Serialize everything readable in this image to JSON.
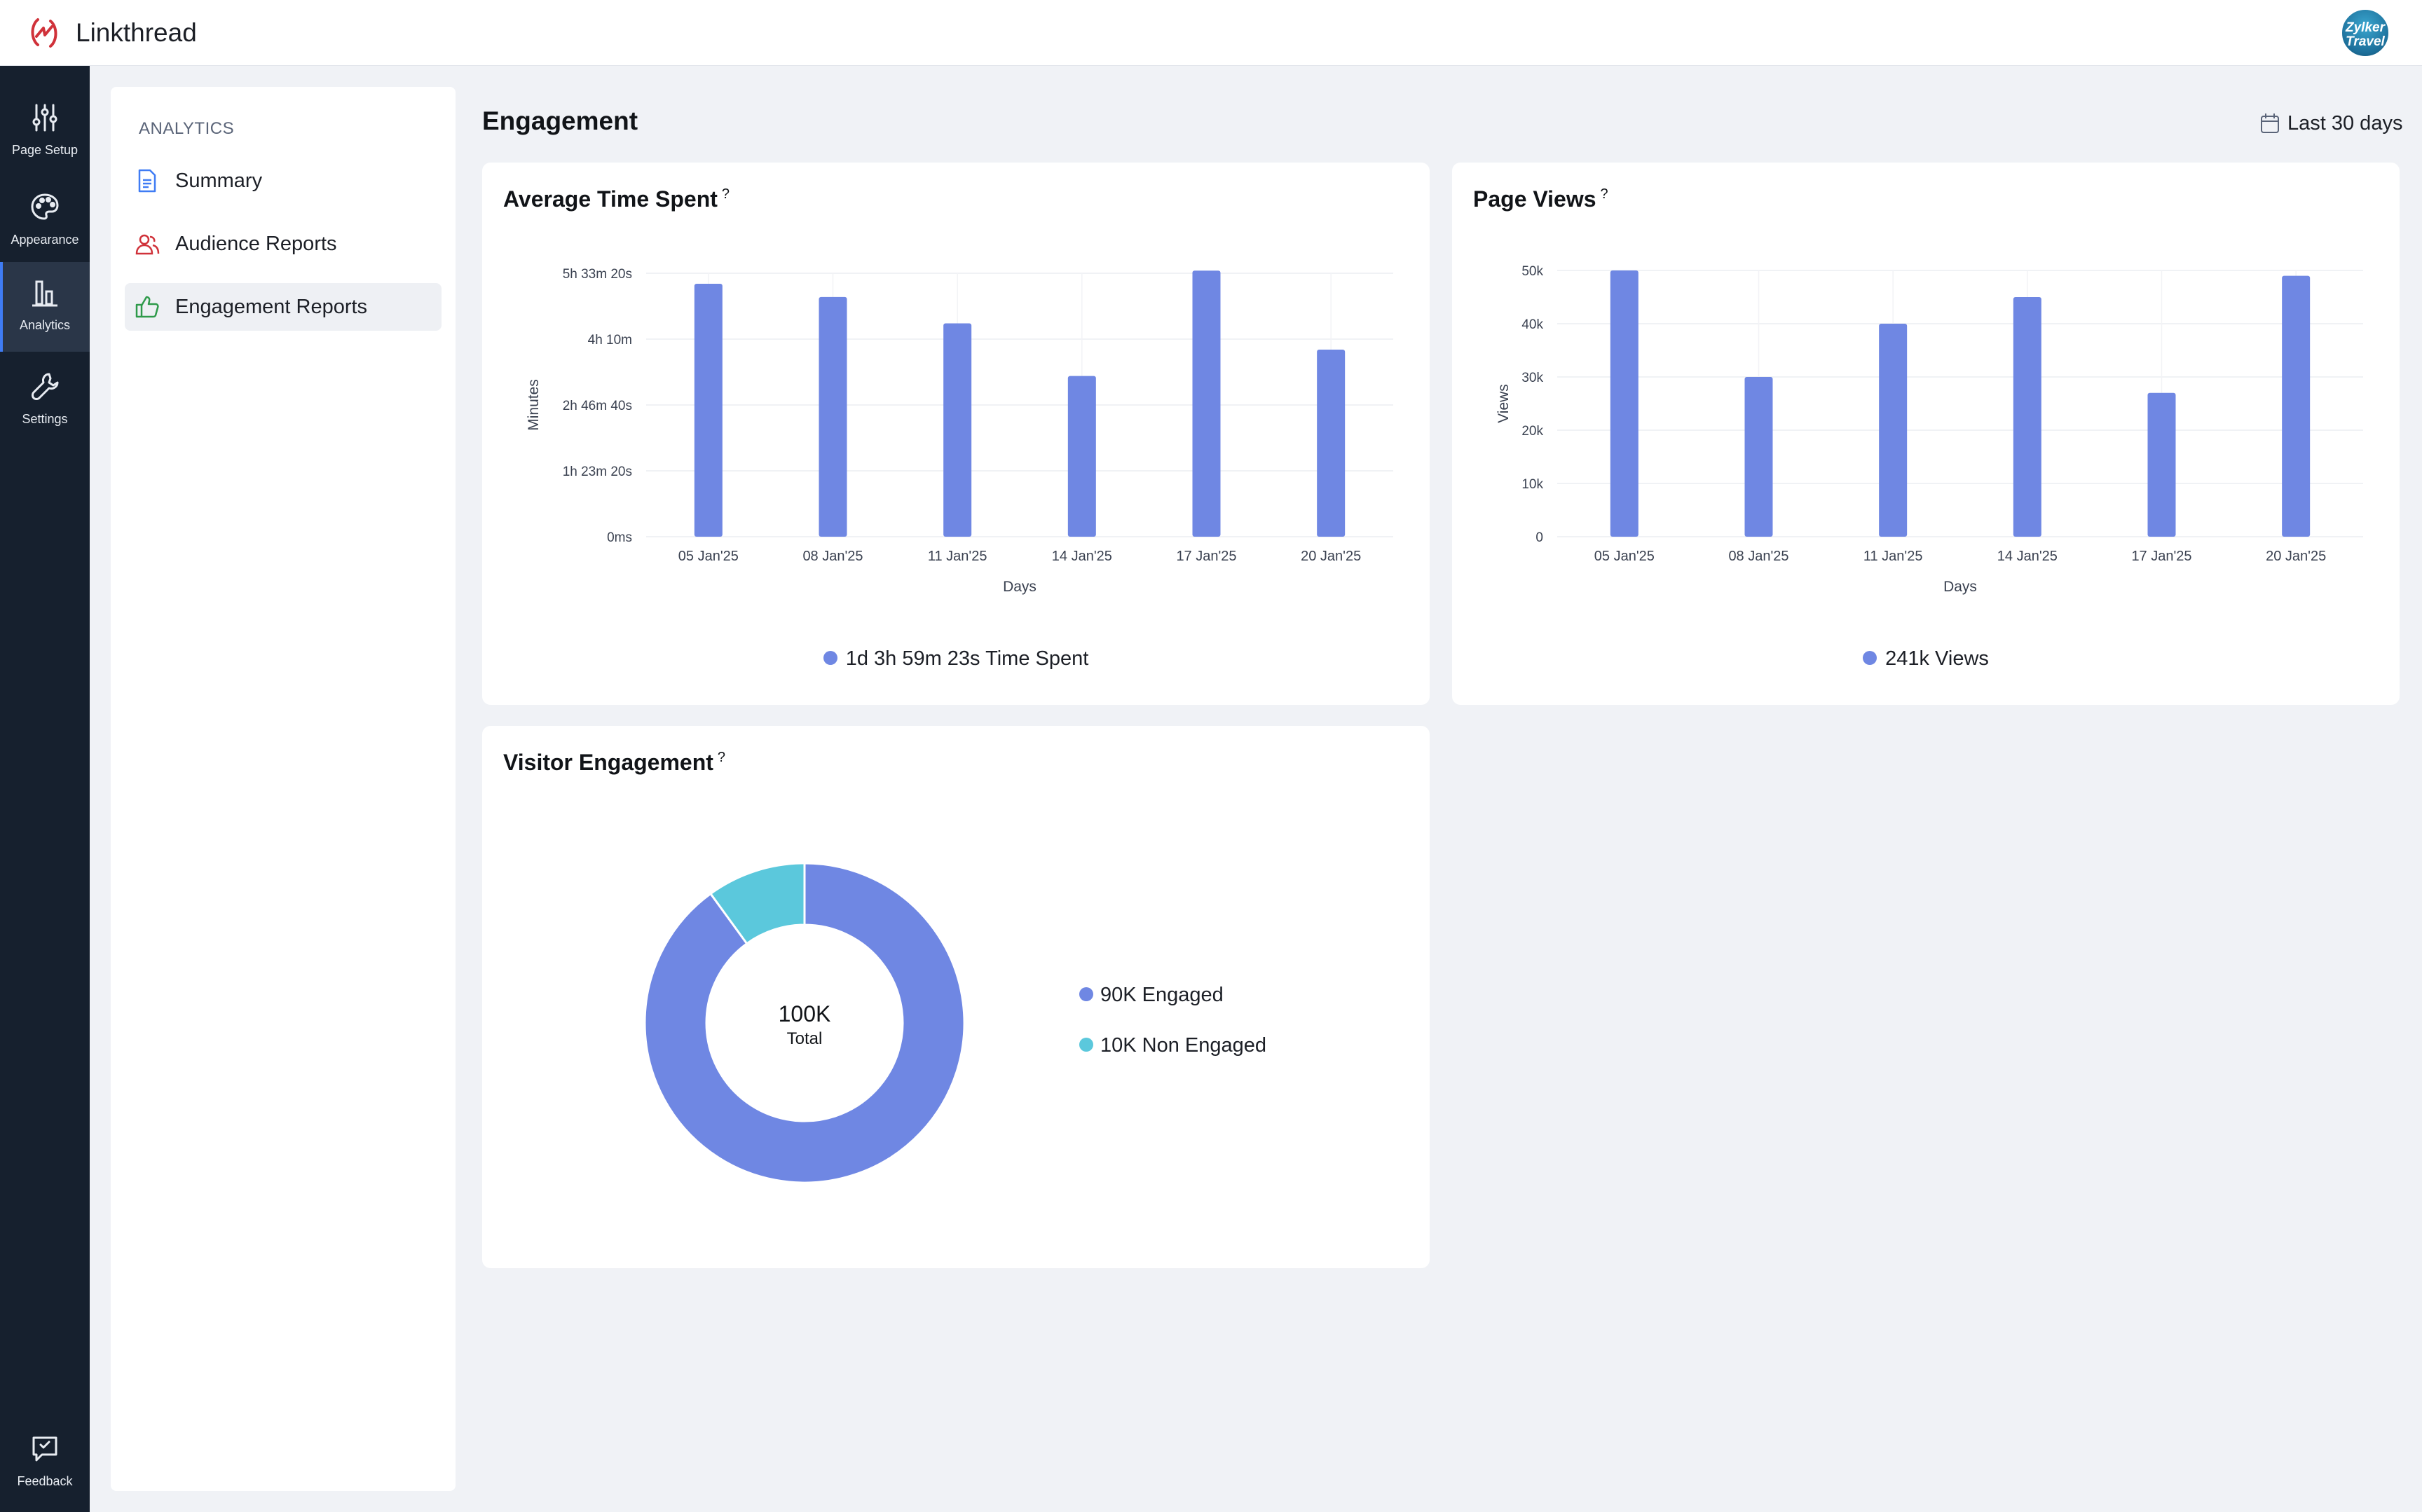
{
  "app": {
    "name": "Linkthread",
    "avatar_text": [
      "Zylker",
      "Travel"
    ]
  },
  "nav": {
    "items": [
      {
        "label": "Page Setup",
        "icon": "sliders-icon"
      },
      {
        "label": "Appearance",
        "icon": "palette-icon"
      },
      {
        "label": "Analytics",
        "icon": "bar-chart-icon",
        "active": true
      },
      {
        "label": "Settings",
        "icon": "wrench-icon"
      }
    ],
    "feedback": {
      "label": "Feedback",
      "icon": "feedback-icon"
    }
  },
  "sidebar": {
    "heading": "ANALYTICS",
    "items": [
      {
        "label": "Summary",
        "icon": "document-icon"
      },
      {
        "label": "Audience Reports",
        "icon": "audience-icon"
      },
      {
        "label": "Engagement Reports",
        "icon": "thumbs-up-icon",
        "active": true
      }
    ]
  },
  "main": {
    "title": "Engagement",
    "date_range": "Last 30 days"
  },
  "colors": {
    "primary": "#6f87e3",
    "secondary": "#5bc8dc",
    "nav_bg": "#16202e",
    "accent": "#3f7cf4"
  },
  "cards": {
    "time_spent": {
      "title": "Average Time Spent",
      "help": "?",
      "legend": "1d 3h 59m 23s Time Spent"
    },
    "page_views": {
      "title": "Page Views",
      "help": "?",
      "legend": "241k Views"
    },
    "visitor_engagement": {
      "title": "Visitor Engagement",
      "help": "?",
      "center_value": "100K",
      "center_label": "Total",
      "legend": [
        "90K Engaged",
        "10K Non Engaged"
      ]
    }
  },
  "chart_data": [
    {
      "type": "bar",
      "title": "Average Time Spent",
      "xlabel": "Days",
      "ylabel": "Minutes",
      "categories": [
        "05 Jan'25",
        "08 Jan'25",
        "11 Jan'25",
        "14 Jan'25",
        "17 Jan'25",
        "20 Jan'25"
      ],
      "yticks": [
        "0ms",
        "1h 23m 20s",
        "2h 46m 40s",
        "4h 10m",
        "5h 33m 20s"
      ],
      "ylim": [
        0,
        20000
      ],
      "series": [
        {
          "values": [
            19200,
            18200,
            16200,
            12200,
            20200,
            14200
          ]
        }
      ],
      "grid": true
    },
    {
      "type": "bar",
      "title": "Page Views",
      "xlabel": "Days",
      "ylabel": "Views",
      "categories": [
        "05 Jan'25",
        "08 Jan'25",
        "11 Jan'25",
        "14 Jan'25",
        "17 Jan'25",
        "20 Jan'25"
      ],
      "yticks": [
        "0",
        "10k",
        "20k",
        "30k",
        "40k",
        "50k"
      ],
      "ylim": [
        0,
        50000
      ],
      "series": [
        {
          "values": [
            50000,
            30000,
            40000,
            45000,
            27000,
            49000
          ]
        }
      ],
      "grid": true
    },
    {
      "type": "pie",
      "title": "Visitor Engagement",
      "labels": [
        "Engaged",
        "Non Engaged"
      ],
      "values": [
        90000,
        10000
      ],
      "colors": [
        "#6f87e3",
        "#5bc8dc"
      ]
    }
  ]
}
